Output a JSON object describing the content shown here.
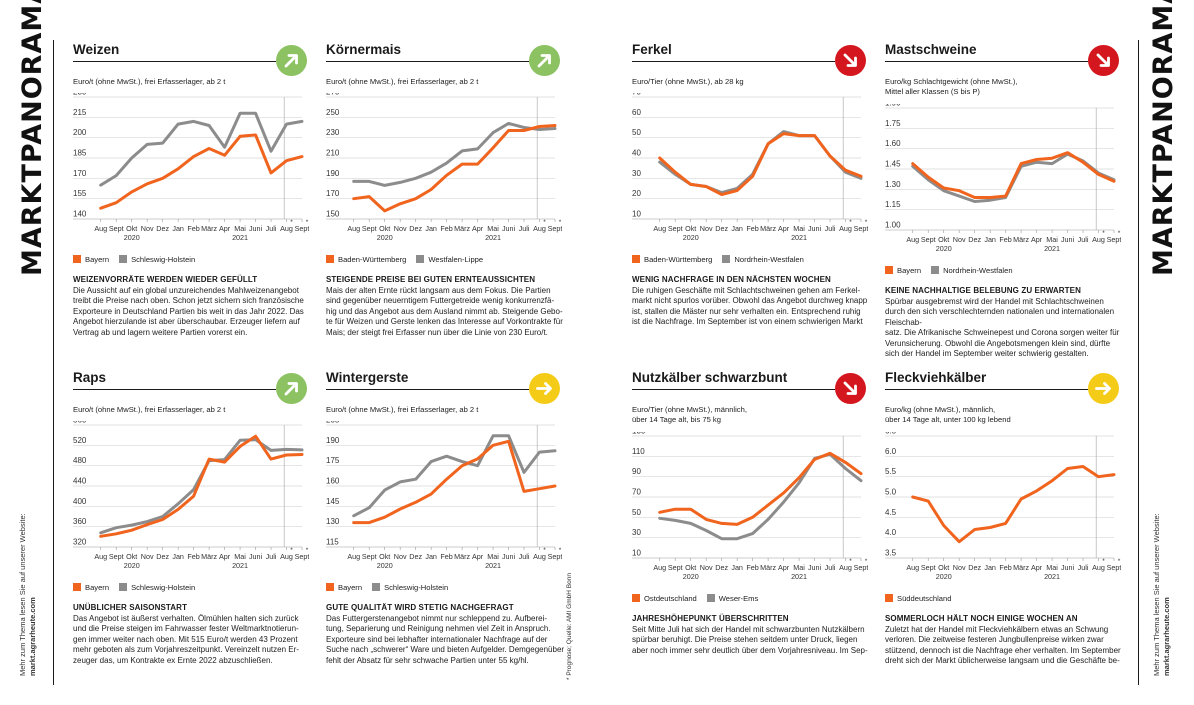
{
  "page": {
    "section_title": "MARKTPANORAMA",
    "website_note": "Mehr zum Thema lesen Sie auf unserer Website:",
    "website_url": "markt.agrarheute.com",
    "source_note": "* Prognose; Quelle: AMI GmbH Bonn",
    "x_labels": [
      "Aug",
      "Sept",
      "Okt",
      "Nov",
      "Dez",
      "Jan",
      "Feb",
      "März",
      "Apr",
      "Mai",
      "Juni",
      "Juli",
      "Aug",
      "Sept"
    ],
    "year_labels": [
      "2020",
      "2021"
    ],
    "forecast_marks": [
      "*",
      "*"
    ],
    "colors": {
      "orange": "#f0641e",
      "grey": "#8c8c8c",
      "green": "#8cc261",
      "red": "#d4161e",
      "yellow": "#f4cc18"
    }
  },
  "panels": [
    {
      "title": "Weizen",
      "trend": "up",
      "trend_color": "#8cc261",
      "unit": "Euro/t (ohne MwSt.), frei Erfasserlager, ab 2 t",
      "legend": [
        "Bayern",
        "Schleswig-Holstein"
      ],
      "heading": "WEIZENVORRÄTE WERDEN WIEDER GEFÜLLT",
      "text": "Die Aussicht auf ein global unzureichendes Mahlweizenangebot\ntreibt die Preise nach oben. Schon jetzt sichern sich französische\nExporteure in Deutschland Partien bis weit in das Jahr 2022. Das\nAngebot hierzulande ist aber überschaubar. Erzeuger liefern auf\nVertrag ab und lagern weitere Partien vorerst ein.",
      "chart_data": {
        "type": "line",
        "ticks": [
          140,
          155,
          170,
          185,
          200,
          215,
          230
        ],
        "ylim": [
          140,
          230
        ],
        "series": [
          {
            "name": "Bayern",
            "color": "orange",
            "values": [
              148,
              152,
              160,
              166,
              170,
              177,
              186,
              192,
              187,
              201,
              202,
              174,
              183,
              186
            ]
          },
          {
            "name": "Schleswig-Holstein",
            "color": "grey",
            "values": [
              165,
              172,
              185,
              195,
              196,
              210,
              212,
              209,
              193,
              218,
              218,
              190,
              210,
              212
            ]
          }
        ]
      }
    },
    {
      "title": "Körnermais",
      "trend": "up",
      "trend_color": "#8cc261",
      "unit": "Euro/t (ohne MwSt.), frei Erfasserlager, ab 2 t",
      "legend": [
        "Baden-Württemberg",
        "Westfalen-Lippe"
      ],
      "heading": "STEIGENDE PREISE BEI GUTEN ERNTEAUSSICHTEN",
      "text": "Mais der alten Ernte rückt langsam aus dem Fokus. Die Partien\nsind gegenüber neuerntigem Futtergetreide wenig konkurrenzfä-\nhig und das Angebot aus dem Ausland nimmt ab. Steigende Gebo-\nte für Weizen und Gerste lenken das Interesse auf Vorkontrakte für\nMais; der steigt frei Erfasser nun über die Linie von 230 Euro/t.",
      "chart_data": {
        "type": "line",
        "ticks": [
          150,
          170,
          190,
          210,
          230,
          250,
          270
        ],
        "ylim": [
          150,
          270
        ],
        "series": [
          {
            "name": "Baden-Württemberg",
            "color": "orange",
            "values": [
              170,
              172,
              158,
              165,
              170,
              179,
              193,
              204,
              204,
              220,
              237,
              237,
              241,
              242
            ]
          },
          {
            "name": "Westfalen-Lippe",
            "color": "grey",
            "values": [
              187,
              187,
              183,
              186,
              190,
              196,
              205,
              217,
              219,
              235,
              244,
              240,
              238,
              239
            ]
          }
        ]
      }
    },
    {
      "title": "Ferkel",
      "trend": "down",
      "trend_color": "#d4161e",
      "unit": "Euro/Tier (ohne MwSt.), ab 28 kg",
      "legend": [
        "Baden-Württemberg",
        "Nordrhein-Westfalen"
      ],
      "heading": "WENIG NACHFRAGE IN DEN NÄCHSTEN WOCHEN",
      "text": "Die ruhigen Geschäfte mit Schlachtschweinen gehen am Ferkel-\nmarkt nicht spurlos vorüber. Obwohl das Angebot durchweg knapp\nist, stallen die Mäster nur sehr verhalten ein. Entsprechend ruhig\nist die Nachfrage. Im September ist von einem schwierigen Markt",
      "chart_data": {
        "type": "line",
        "ticks": [
          10,
          20,
          30,
          40,
          50,
          60,
          70
        ],
        "ylim": [
          10,
          70
        ],
        "series": [
          {
            "name": "Baden-Württemberg",
            "color": "orange",
            "values": [
              40,
              33,
              27,
              26,
              22,
              24,
              31,
              47,
              52,
              51,
              51,
              41,
              34,
              31
            ]
          },
          {
            "name": "Nordrhein-Westfalen",
            "color": "grey",
            "values": [
              38,
              32,
              27,
              26,
              23,
              25,
              32,
              47,
              53,
              51,
              51,
              41,
              33,
              30
            ]
          }
        ]
      }
    },
    {
      "title": "Mastschweine",
      "trend": "down",
      "trend_color": "#d4161e",
      "unit": "Euro/kg Schlachtgewicht (ohne MwSt.),\nMittel aller Klassen (S bis P)",
      "legend": [
        "Bayern",
        "Nordrhein-Westfalen"
      ],
      "heading": "KEINE NACHHALTIGE BELEBUNG ZU ERWARTEN",
      "text": "Spürbar ausgebremst wird der Handel mit Schlachtschweinen\ndurch den sich verschlechternden nationalen und internationalen Fleischab-\nsatz. Die Afrikanische Schweinepest und Corona sorgen weiter für\nVerunsicherung. Obwohl die Angebotsmengen klein sind, dürfte\nsich der Handel im September weiter schwierig gestalten.",
      "chart_data": {
        "type": "line",
        "ticks": [
          1.0,
          1.15,
          1.3,
          1.45,
          1.6,
          1.75,
          1.9
        ],
        "ylim": [
          1.0,
          1.9
        ],
        "series": [
          {
            "name": "Bayern",
            "color": "orange",
            "values": [
              1.49,
              1.39,
              1.31,
              1.29,
              1.24,
              1.24,
              1.25,
              1.49,
              1.52,
              1.53,
              1.57,
              1.5,
              1.41,
              1.36
            ]
          },
          {
            "name": "Nordrhein-Westfalen",
            "color": "grey",
            "values": [
              1.47,
              1.37,
              1.29,
              1.25,
              1.21,
              1.22,
              1.24,
              1.47,
              1.5,
              1.49,
              1.56,
              1.51,
              1.42,
              1.37
            ]
          }
        ]
      }
    },
    {
      "title": "Raps",
      "trend": "up",
      "trend_color": "#8cc261",
      "unit": "Euro/t (ohne MwSt.), frei Erfasserlager, ab 2 t",
      "legend": [
        "Bayern",
        "Schleswig-Holstein"
      ],
      "heading": "UNÜBLICHER SAISONSTART",
      "text": "Das Angebot ist äußerst verhalten. Ölmühlen halten sich zurück\nund die Preise steigen im Fahrwasser fester Weltmarktnotierun-\ngen immer weiter nach oben. Mit 515 Euro/t werden 43 Prozent\nmehr geboten als zum Vorjahreszeitpunkt. Vereinzelt nutzen Er-\nzeuger das, um Kontrakte ex Ernte 2022 abzuschließen.",
      "chart_data": {
        "type": "line",
        "ticks": [
          320,
          360,
          400,
          440,
          480,
          520,
          560
        ],
        "ylim": [
          320,
          560
        ],
        "series": [
          {
            "name": "Bayern",
            "color": "orange",
            "values": [
              341,
              346,
              353,
              364,
              374,
              394,
              420,
              493,
              487,
              518,
              538,
              493,
              501,
              502
            ]
          },
          {
            "name": "Schleswig-Holstein",
            "color": "grey",
            "values": [
              348,
              358,
              363,
              370,
              380,
              405,
              433,
              490,
              492,
              530,
              531,
              510,
              512,
              511
            ]
          }
        ]
      }
    },
    {
      "title": "Wintergerste",
      "trend": "flat",
      "trend_color": "#f4cc18",
      "unit": "Euro/t (ohne MwSt.), frei Erfasserlager, ab 2 t",
      "legend": [
        "Bayern",
        "Schleswig-Holstein"
      ],
      "heading": "GUTE QUALITÄT WIRD STETIG NACHGEFRAGT",
      "text": "Das Futtergerstenangebot nimmt nur schleppend zu. Aufberei-\ntung, Separierung und Reinigung nehmen viel Zeit in Anspruch.\nExporteure sind bei lebhafter internationaler Nachfrage auf der\nSuche nach „schwerer“ Ware und bieten Aufgelder. Demgegenüber\nfehlt der Absatz für sehr schwache Partien unter 55 kg/hl.",
      "chart_data": {
        "type": "line",
        "ticks": [
          115,
          130,
          145,
          160,
          175,
          190,
          205
        ],
        "ylim": [
          115,
          205
        ],
        "series": [
          {
            "name": "Bayern",
            "color": "orange",
            "values": [
              133,
              133,
              137,
              143,
              148,
              154,
              165,
              175,
              180,
              190,
              193,
              156,
              158,
              160
            ]
          },
          {
            "name": "Schleswig-Holstein",
            "color": "grey",
            "values": [
              138,
              144,
              157,
              163,
              165,
              178,
              182,
              178,
              175,
              197,
              197,
              170,
              185,
              186
            ]
          }
        ]
      }
    },
    {
      "title": "Nutzkälber schwarzbunt",
      "trend": "down",
      "trend_color": "#d4161e",
      "unit": "Euro/Tier (ohne MwSt.), männlich,\nüber 14 Tage alt, bis 75 kg",
      "legend": [
        "Ostdeutschland",
        "Weser-Ems"
      ],
      "heading": "JAHRESHÖHEPUNKT ÜBERSCHRITTEN",
      "text": "Seit Mitte Juli hat sich der Handel mit schwarzbunten Nutzkälbern\nspürbar beruhigt. Die Preise stehen seitdem unter Druck, liegen\naber noch immer sehr deutlich über dem Vorjahresniveau. Im Sep-",
      "chart_data": {
        "type": "line",
        "ticks": [
          10,
          30,
          50,
          70,
          90,
          110,
          130
        ],
        "ylim": [
          10,
          130
        ],
        "series": [
          {
            "name": "Ostdeutschland",
            "color": "orange",
            "values": [
              55,
              58,
              58,
              48,
              44,
              43,
              50,
              62,
              74,
              89,
              107,
              113,
              104,
              93
            ]
          },
          {
            "name": "Weser-Ems",
            "color": "grey",
            "values": [
              49,
              47,
              44,
              37,
              29,
              29,
              34,
              48,
              65,
              84,
              108,
              112,
              98,
              86
            ]
          }
        ]
      }
    },
    {
      "title": "Fleckviehkälber",
      "trend": "flat",
      "trend_color": "#f4cc18",
      "unit": "Euro/kg (ohne MwSt.), männlich,\nüber 14 Tage alt, unter 100 kg lebend",
      "legend": [
        "Süddeutschland"
      ],
      "heading": "SOMMERLOCH HÄLT NOCH EINIGE WOCHEN AN",
      "text": "Zuletzt hat der Handel mit Fleckviehkälbern etwas an Schwung\nverloren. Die zeitweise festeren Jungbullenpreise wirken zwar\nstützend, dennoch ist die Nachfrage eher verhalten. Im September\ndreht sich der Markt üblicherweise langsam und die Geschäfte be-",
      "chart_data": {
        "type": "line",
        "ticks": [
          3.5,
          4.0,
          4.5,
          5.0,
          5.5,
          6.0,
          6.5
        ],
        "ylim": [
          3.5,
          6.5
        ],
        "series": [
          {
            "name": "Süddeutschland",
            "color": "orange",
            "values": [
              5.0,
              4.9,
              4.3,
              3.9,
              4.2,
              4.25,
              4.35,
              4.95,
              5.15,
              5.4,
              5.7,
              5.75,
              5.5,
              5.55
            ]
          }
        ]
      }
    }
  ]
}
